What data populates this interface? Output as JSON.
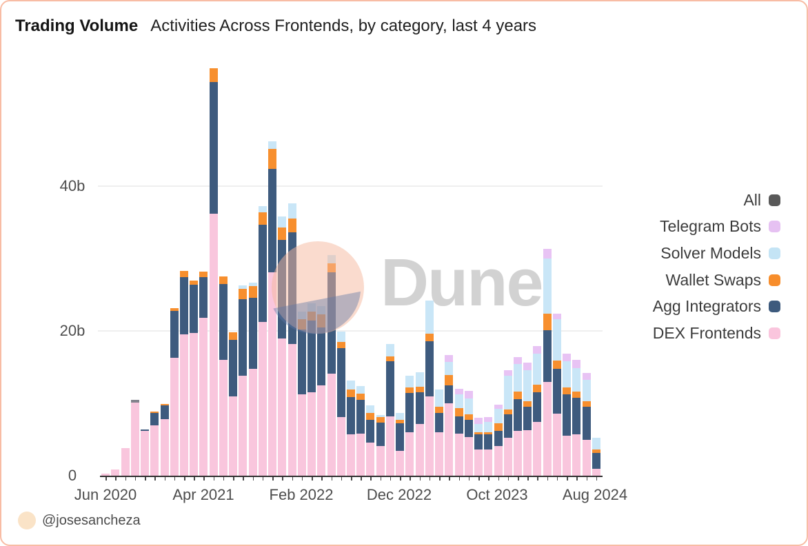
{
  "header": {
    "title": "Trading Volume",
    "subtitle": "Activities Across Frontends, by category, last 4 years"
  },
  "watermark": {
    "brand": "Dune"
  },
  "attribution": {
    "handle": "@josesancheza"
  },
  "axes": {
    "y_ticks": [
      "0",
      "20b",
      "40b"
    ],
    "x_ticks": [
      "Jun 2020",
      "Apr 2021",
      "Feb 2022",
      "Dec 2022",
      "Oct 2023",
      "Aug 2024"
    ]
  },
  "legend": [
    {
      "label": "All",
      "color": "#595959"
    },
    {
      "label": "Telegram Bots",
      "color": "#e6c1f2"
    },
    {
      "label": "Solver Models",
      "color": "#c4e4f5"
    },
    {
      "label": "Wallet Swaps",
      "color": "#f78d2b"
    },
    {
      "label": "Agg Integrators",
      "color": "#3d5a7d"
    },
    {
      "label": "DEX Frontends",
      "color": "#fac5dd"
    }
  ],
  "chart_data": {
    "type": "bar",
    "variant": "stacked",
    "title": "Trading Volume — Activities Across Frontends, by category, last 4 years",
    "unit": "billions USD (b)",
    "ylim": [
      0,
      57
    ],
    "y_gridlines": [
      20,
      40
    ],
    "grid": "horizontal-only",
    "legend_position": "right",
    "legend_order_top_to_bottom": [
      "All",
      "Telegram Bots",
      "Solver Models",
      "Wallet Swaps",
      "Agg Integrators",
      "DEX Frontends"
    ],
    "x_tick_indices": [
      0,
      10,
      20,
      30,
      40,
      50
    ],
    "categories": [
      "Jun 2020",
      "Jul 2020",
      "Aug 2020",
      "Sep 2020",
      "Oct 2020",
      "Nov 2020",
      "Dec 2020",
      "Jan 2021",
      "Feb 2021",
      "Mar 2021",
      "Apr 2021",
      "May 2021",
      "Jun 2021",
      "Jul 2021",
      "Aug 2021",
      "Sep 2021",
      "Oct 2021",
      "Nov 2021",
      "Dec 2021",
      "Jan 2022",
      "Feb 2022",
      "Mar 2022",
      "Apr 2022",
      "May 2022",
      "Jun 2022",
      "Jul 2022",
      "Aug 2022",
      "Sep 2022",
      "Oct 2022",
      "Nov 2022",
      "Dec 2022",
      "Jan 2023",
      "Feb 2023",
      "Mar 2023",
      "Apr 2023",
      "May 2023",
      "Jun 2023",
      "Jul 2023",
      "Aug 2023",
      "Sep 2023",
      "Oct 2023",
      "Nov 2023",
      "Dec 2023",
      "Jan 2024",
      "Feb 2024",
      "Mar 2024",
      "Apr 2024",
      "May 2024",
      "Jun 2024",
      "Jul 2024",
      "Aug 2024"
    ],
    "series": [
      {
        "name": "DEX Frontends",
        "color": "#f9c6dd",
        "values": [
          0.3,
          0.9,
          3.8,
          10.1,
          6.2,
          7.0,
          7.8,
          16.3,
          19.5,
          19.7,
          21.8,
          36.2,
          16.0,
          11.0,
          13.8,
          14.8,
          21.2,
          28.1,
          19.0,
          18.2,
          11.2,
          11.5,
          12.5,
          14.1,
          8.1,
          5.7,
          5.8,
          4.6,
          4.1,
          8.2,
          3.4,
          6.0,
          7.1,
          11.0,
          6.0,
          10.0,
          5.8,
          5.3,
          3.6,
          3.6,
          4.1,
          5.2,
          6.2,
          6.3,
          7.4,
          13.0,
          8.6,
          5.5,
          5.7,
          5.0,
          1.0
        ]
      },
      {
        "name": "Agg Integrators",
        "color": "#3e5b7e",
        "values": [
          0,
          0,
          0,
          0,
          0.2,
          1.7,
          1.9,
          6.5,
          7.9,
          6.7,
          5.6,
          18.2,
          10.5,
          7.8,
          10.6,
          9.8,
          13.5,
          14.3,
          13.6,
          15.4,
          9.0,
          9.9,
          8.0,
          14.0,
          9.5,
          5.2,
          4.7,
          3.1,
          3.2,
          7.6,
          3.8,
          5.4,
          4.4,
          7.6,
          2.7,
          2.5,
          2.4,
          2.4,
          2.1,
          2.1,
          2.1,
          3.3,
          4.4,
          3.2,
          4.1,
          7.1,
          6.2,
          5.7,
          5.1,
          4.5,
          2.1
        ]
      },
      {
        "name": "Wallet Swaps",
        "color": "#f78f2e",
        "values": [
          0,
          0,
          0,
          0,
          0,
          0.1,
          0.2,
          0.3,
          0.9,
          0.6,
          0.8,
          1.9,
          1.0,
          1.0,
          1.4,
          1.6,
          1.7,
          2.7,
          1.7,
          1.9,
          1.4,
          1.3,
          1.8,
          1.2,
          0.9,
          1.0,
          0.8,
          1.0,
          0.8,
          0.7,
          0.5,
          0.8,
          0.8,
          1.0,
          0.8,
          1.4,
          1.1,
          0.8,
          0.3,
          0.3,
          1.0,
          0.6,
          1.0,
          0.8,
          1.1,
          2.3,
          1.1,
          1.0,
          0.8,
          0.8,
          0.5
        ]
      },
      {
        "name": "Solver Models",
        "color": "#c9e6f7",
        "values": [
          0,
          0,
          0,
          0,
          0,
          0,
          0,
          0,
          0,
          0,
          0,
          0,
          0,
          0,
          0.5,
          0.5,
          0.8,
          1.1,
          1.5,
          2.1,
          1.1,
          1.1,
          1.1,
          1.2,
          1.4,
          1.2,
          1.1,
          1.0,
          0.3,
          1.7,
          1.0,
          1.6,
          2.0,
          4.6,
          2.4,
          1.8,
          1.9,
          2.2,
          1.1,
          1.4,
          2.0,
          4.7,
          3.8,
          4.3,
          4.3,
          7.6,
          5.7,
          3.6,
          3.3,
          2.9,
          1.6
        ]
      },
      {
        "name": "Telegram Bots",
        "color": "#e8c3f4",
        "values": [
          0,
          0,
          0,
          0,
          0,
          0,
          0,
          0,
          0,
          0,
          0,
          0,
          0,
          0,
          0,
          0,
          0,
          0,
          0,
          0,
          0,
          0,
          0,
          0,
          0,
          0,
          0,
          0,
          0,
          0,
          0,
          0,
          0,
          0,
          0,
          1.0,
          0.8,
          1.0,
          0.9,
          0.7,
          0.6,
          0.8,
          1.0,
          1.0,
          1.0,
          1.3,
          0.8,
          1.1,
          1.1,
          1.0,
          0
        ]
      },
      {
        "name": "All",
        "color": "#83838d",
        "values": [
          0,
          0,
          0,
          0.4,
          0,
          0,
          0,
          0,
          0,
          0,
          0,
          0,
          0,
          0,
          0,
          0,
          0,
          0,
          0,
          0,
          0,
          0,
          0,
          0,
          0,
          0,
          0,
          0,
          0,
          0,
          0,
          0,
          0,
          0,
          0,
          0,
          0,
          0,
          0,
          0,
          0,
          0,
          0,
          0,
          0,
          0,
          0,
          0,
          0,
          0,
          0
        ]
      }
    ]
  }
}
